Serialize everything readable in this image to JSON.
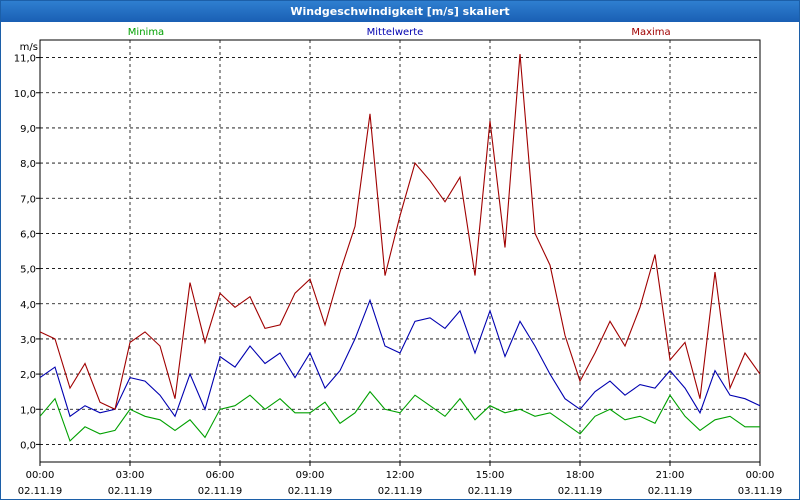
{
  "window": {
    "title": "Windgeschwindigkeit [m/s] skaliert"
  },
  "chart_data": {
    "type": "line",
    "title": "Windgeschwindigkeit [m/s] skaliert",
    "ylabel": "m/s",
    "ylim": [
      -0.5,
      11.5
    ],
    "yticks": [
      0,
      1,
      2,
      3,
      4,
      5,
      6,
      7,
      8,
      9,
      10,
      11
    ],
    "ytick_labels": [
      "0,0",
      "1,0",
      "2,0",
      "3,0",
      "4,0",
      "5,0",
      "6,0",
      "7,0",
      "8,0",
      "9,0",
      "10,0",
      "11,0"
    ],
    "x_range_hours": [
      0,
      24
    ],
    "xticks": [
      {
        "time": "00:00",
        "date": "02.11.19"
      },
      {
        "time": "03:00",
        "date": "02.11.19"
      },
      {
        "time": "06:00",
        "date": "02.11.19"
      },
      {
        "time": "09:00",
        "date": "02.11.19"
      },
      {
        "time": "12:00",
        "date": "02.11.19"
      },
      {
        "time": "15:00",
        "date": "02.11.19"
      },
      {
        "time": "18:00",
        "date": "02.11.19"
      },
      {
        "time": "21:00",
        "date": "02.11.19"
      },
      {
        "time": "00:00",
        "date": "03.11.19"
      }
    ],
    "grid": true,
    "legend_position": "top",
    "series": [
      {
        "name": "Minima",
        "color": "#00a000",
        "x": [
          0,
          0.5,
          1,
          1.5,
          2,
          2.5,
          3,
          3.5,
          4,
          4.5,
          5,
          5.5,
          6,
          6.5,
          7,
          7.5,
          8,
          8.5,
          9,
          9.5,
          10,
          10.5,
          11,
          11.5,
          12,
          12.5,
          13,
          13.5,
          14,
          14.5,
          15,
          15.5,
          16,
          16.5,
          17,
          17.5,
          18,
          18.5,
          19,
          19.5,
          20,
          20.5,
          21,
          21.5,
          22,
          22.5,
          23,
          23.5,
          24
        ],
        "values": [
          0.8,
          1.3,
          0.1,
          0.5,
          0.3,
          0.4,
          1.0,
          0.8,
          0.7,
          0.4,
          0.7,
          0.2,
          1.0,
          1.1,
          1.4,
          1.0,
          1.3,
          0.9,
          0.9,
          1.2,
          0.6,
          0.9,
          1.5,
          1.0,
          0.9,
          1.4,
          1.1,
          0.8,
          1.3,
          0.7,
          1.1,
          0.9,
          1.0,
          0.8,
          0.9,
          0.6,
          0.3,
          0.8,
          1.0,
          0.7,
          0.8,
          0.6,
          1.4,
          0.8,
          0.4,
          0.7,
          0.8,
          0.5,
          0.5
        ]
      },
      {
        "name": "Mittelwerte",
        "color": "#0000b0",
        "x": [
          0,
          0.5,
          1,
          1.5,
          2,
          2.5,
          3,
          3.5,
          4,
          4.5,
          5,
          5.5,
          6,
          6.5,
          7,
          7.5,
          8,
          8.5,
          9,
          9.5,
          10,
          10.5,
          11,
          11.5,
          12,
          12.5,
          13,
          13.5,
          14,
          14.5,
          15,
          15.5,
          16,
          16.5,
          17,
          17.5,
          18,
          18.5,
          19,
          19.5,
          20,
          20.5,
          21,
          21.5,
          22,
          22.5,
          23,
          23.5,
          24
        ],
        "values": [
          1.9,
          2.2,
          0.8,
          1.1,
          0.9,
          1.0,
          1.9,
          1.8,
          1.4,
          0.8,
          2.0,
          1.0,
          2.5,
          2.2,
          2.8,
          2.3,
          2.6,
          1.9,
          2.6,
          1.6,
          2.1,
          3.0,
          4.1,
          2.8,
          2.6,
          3.5,
          3.6,
          3.3,
          3.8,
          2.6,
          3.8,
          2.5,
          3.5,
          2.8,
          2.0,
          1.3,
          1.0,
          1.5,
          1.8,
          1.4,
          1.7,
          1.6,
          2.1,
          1.6,
          0.9,
          2.1,
          1.4,
          1.3,
          1.1
        ]
      },
      {
        "name": "Maxima",
        "color": "#a00000",
        "x": [
          0,
          0.5,
          1,
          1.5,
          2,
          2.5,
          3,
          3.5,
          4,
          4.5,
          5,
          5.5,
          6,
          6.5,
          7,
          7.5,
          8,
          8.5,
          9,
          9.5,
          10,
          10.5,
          11,
          11.5,
          12,
          12.5,
          13,
          13.5,
          14,
          14.5,
          15,
          15.5,
          16,
          16.5,
          17,
          17.5,
          18,
          18.5,
          19,
          19.5,
          20,
          20.5,
          21,
          21.5,
          22,
          22.5,
          23,
          23.5,
          24
        ],
        "values": [
          3.2,
          3.0,
          1.6,
          2.3,
          1.2,
          1.0,
          2.9,
          3.2,
          2.8,
          1.3,
          4.6,
          2.9,
          4.3,
          3.9,
          4.2,
          3.3,
          3.4,
          4.3,
          4.7,
          3.4,
          4.9,
          6.2,
          9.4,
          4.8,
          6.5,
          8.0,
          7.5,
          6.9,
          7.6,
          4.8,
          9.2,
          5.6,
          11.1,
          6.0,
          5.1,
          3.1,
          1.8,
          2.6,
          3.5,
          2.8,
          3.9,
          5.4,
          2.4,
          2.9,
          1.3,
          4.9,
          1.6,
          2.6,
          2.0
        ]
      }
    ]
  }
}
